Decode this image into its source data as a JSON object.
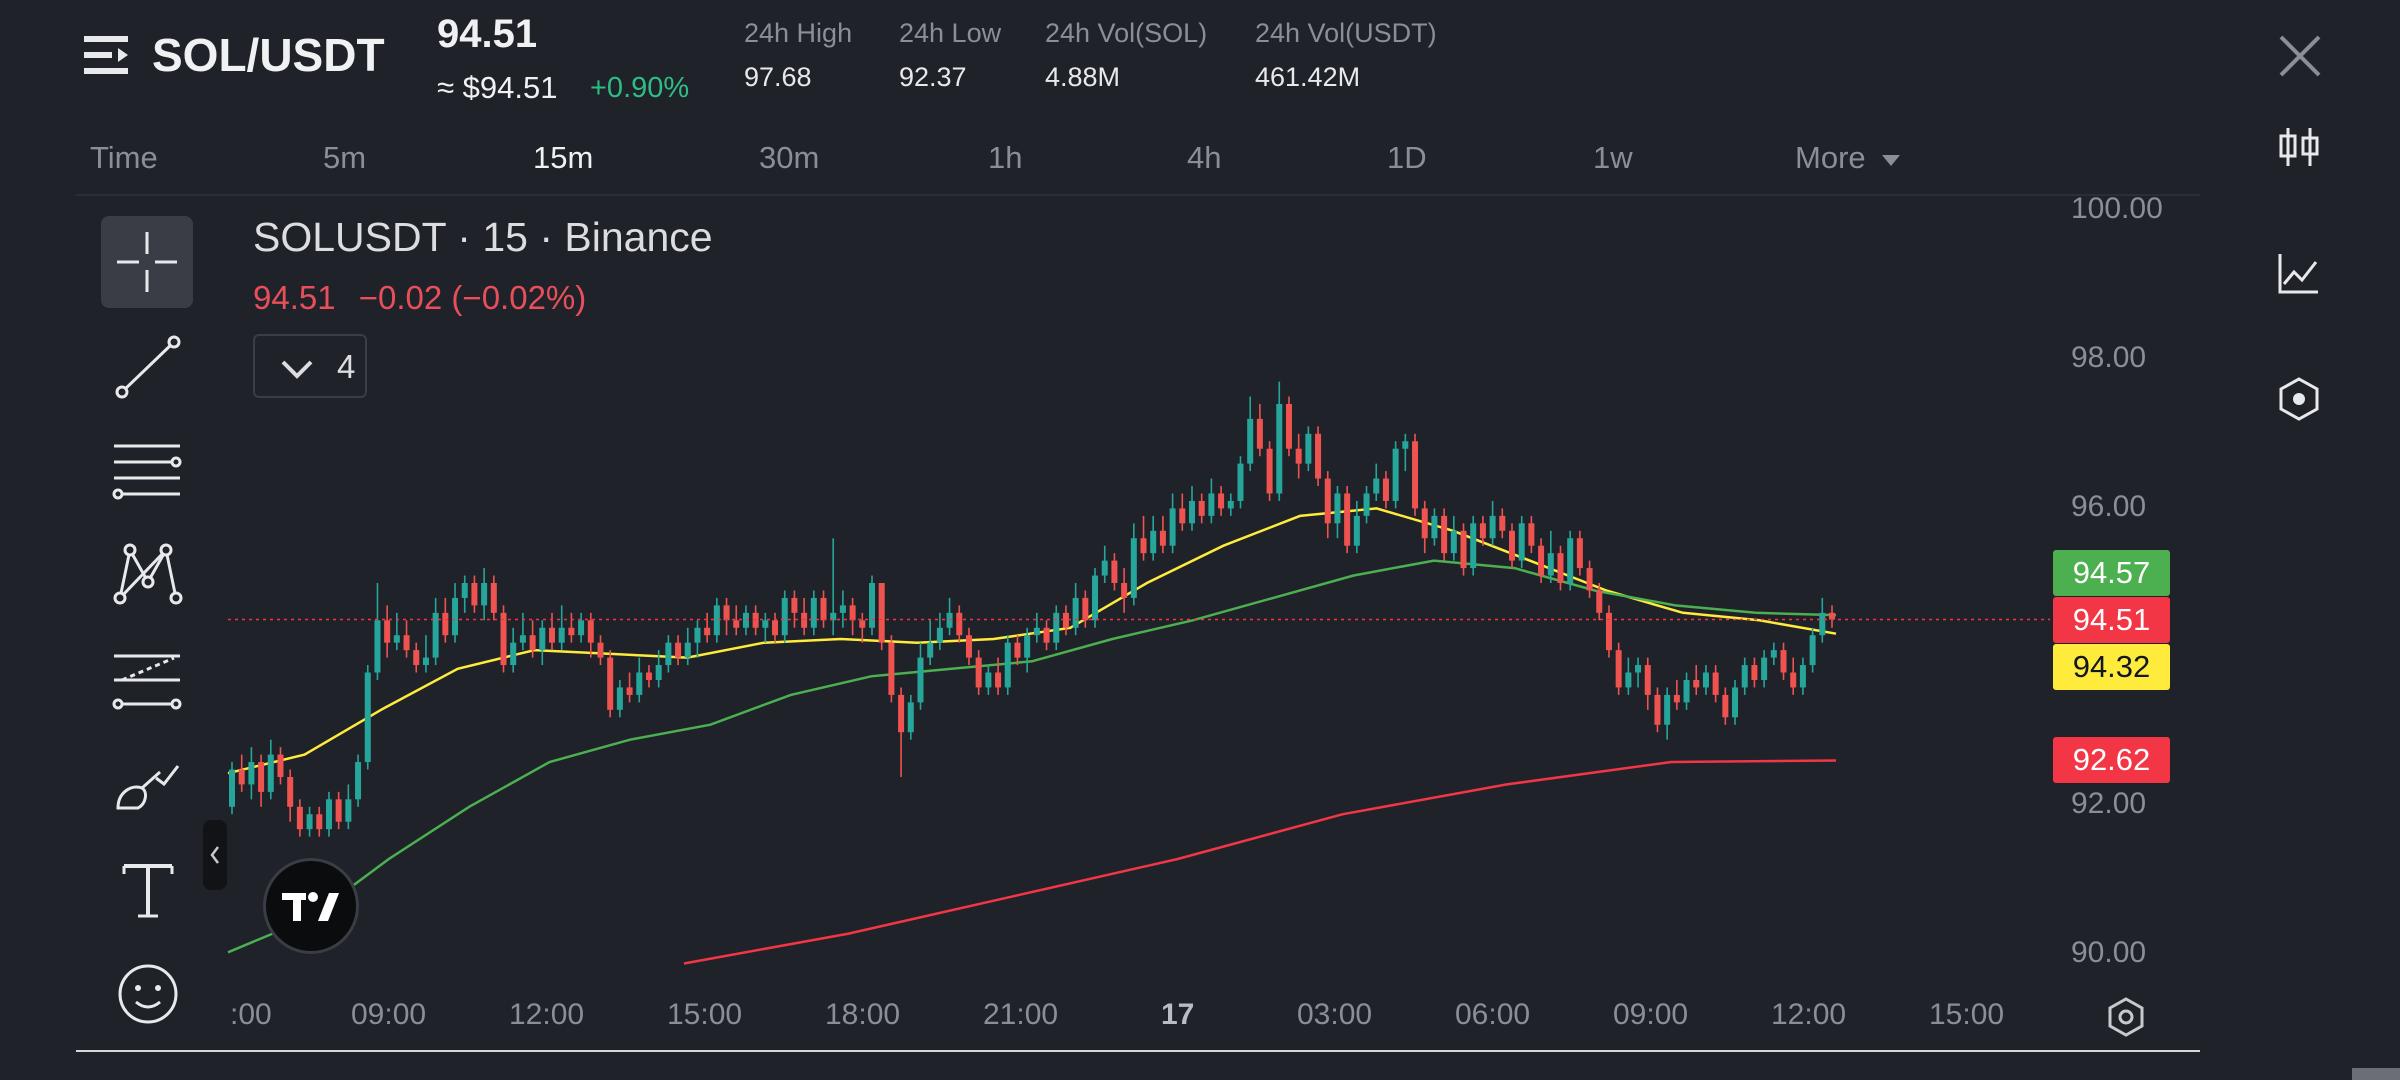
{
  "header": {
    "pair": "SOL/USDT",
    "last_price": "94.51",
    "approx_price": "≈ $94.51",
    "change_pct": "+0.90%",
    "stats": [
      {
        "label": "24h High",
        "value": "97.68"
      },
      {
        "label": "24h Low",
        "value": "92.37"
      },
      {
        "label": "24h Vol(SOL)",
        "value": "4.88M"
      },
      {
        "label": "24h Vol(USDT)",
        "value": "461.42M"
      }
    ]
  },
  "timeframes": [
    "Time",
    "5m",
    "15m",
    "30m",
    "1h",
    "4h",
    "1D",
    "1w",
    "More"
  ],
  "active_timeframe": "15m",
  "legend": {
    "symbol": "SOLUSDT · 15 · Binance",
    "price": "94.51",
    "change": "−0.02 (−0.02%)",
    "indicator_count": "4"
  },
  "tools": [
    "crosshair-icon",
    "trend-line-icon",
    "fib-levels-icon",
    "pattern-icon",
    "forecast-icon",
    "brush-icon",
    "text-icon",
    "emoji-icon"
  ],
  "side_icons": [
    "candlestick-icon",
    "line-chart-icon",
    "indicator-hex-icon"
  ],
  "price_tags": [
    {
      "label": "94.57",
      "bg": "#4caf50",
      "fg": "#ffffff"
    },
    {
      "label": "94.51",
      "bg": "#f23645",
      "fg": "#ffffff"
    },
    {
      "label": "94.32",
      "bg": "#ffeb3b",
      "fg": "#131722"
    },
    {
      "label": "92.62",
      "bg": "#f23645",
      "fg": "#ffffff"
    }
  ],
  "chart_data": {
    "type": "line",
    "y_ticks": [
      "100.00",
      "98.00",
      "96.00",
      "92.00",
      "90.00"
    ],
    "ylim": [
      90,
      100
    ],
    "x_ticks": [
      ":00",
      "09:00",
      "12:00",
      "15:00",
      "18:00",
      "21:00",
      "17",
      "03:00",
      "06:00",
      "09:00",
      "12:00",
      "15:00"
    ],
    "current_price": 94.51,
    "series": [
      {
        "color": "#ffeb3b",
        "values": [
          92.45,
          92.7,
          93.3,
          93.85,
          94.1,
          94.05,
          94.0,
          94.2,
          94.25,
          94.2,
          94.25,
          94.4,
          95.0,
          95.5,
          95.9,
          96.0,
          95.7,
          95.3,
          94.9,
          94.6,
          94.5,
          94.32
        ]
      },
      {
        "color": "#4caf50",
        "values": [
          90.05,
          90.5,
          91.3,
          92.0,
          92.6,
          92.9,
          93.1,
          93.5,
          93.75,
          93.85,
          93.95,
          94.25,
          94.5,
          94.8,
          95.1,
          95.3,
          95.2,
          94.9,
          94.7,
          94.6,
          94.57
        ]
      },
      {
        "color": "#f23645",
        "values": [
          89.9,
          90.3,
          90.8,
          91.3,
          91.9,
          92.3,
          92.6,
          92.62
        ]
      }
    ],
    "candles": [
      [
        92.0,
        92.5,
        92.6,
        91.9
      ],
      [
        92.5,
        92.3,
        92.7,
        92.2
      ],
      [
        92.3,
        92.6,
        92.8,
        92.1
      ],
      [
        92.6,
        92.2,
        92.7,
        92.0
      ],
      [
        92.2,
        92.7,
        92.9,
        92.1
      ],
      [
        92.7,
        92.4,
        92.8,
        92.3
      ],
      [
        92.4,
        92.0,
        92.5,
        91.8
      ],
      [
        92.0,
        91.7,
        92.1,
        91.6
      ],
      [
        91.7,
        91.9,
        92.0,
        91.6
      ],
      [
        91.9,
        91.7,
        92.0,
        91.6
      ],
      [
        91.7,
        92.1,
        92.2,
        91.6
      ],
      [
        92.1,
        91.8,
        92.2,
        91.7
      ],
      [
        91.8,
        92.1,
        92.3,
        91.7
      ],
      [
        92.1,
        92.6,
        92.7,
        92.0
      ],
      [
        92.6,
        93.8,
        93.9,
        92.5
      ],
      [
        93.8,
        94.5,
        95.0,
        93.7
      ],
      [
        94.5,
        94.2,
        94.7,
        94.0
      ],
      [
        94.2,
        94.3,
        94.6,
        94.1
      ],
      [
        94.3,
        94.1,
        94.5,
        94.0
      ],
      [
        94.1,
        93.9,
        94.2,
        93.8
      ],
      [
        93.9,
        94.0,
        94.3,
        93.8
      ],
      [
        94.0,
        94.6,
        94.8,
        93.9
      ],
      [
        94.6,
        94.3,
        94.8,
        94.2
      ],
      [
        94.3,
        94.8,
        95.0,
        94.2
      ],
      [
        94.8,
        95.0,
        95.1,
        94.6
      ],
      [
        95.0,
        94.7,
        95.1,
        94.6
      ],
      [
        94.7,
        95.0,
        95.2,
        94.5
      ],
      [
        95.0,
        94.6,
        95.1,
        94.5
      ],
      [
        94.6,
        93.9,
        94.7,
        93.8
      ],
      [
        93.9,
        94.2,
        94.4,
        93.8
      ],
      [
        94.2,
        94.3,
        94.6,
        94.1
      ],
      [
        94.3,
        94.1,
        94.5,
        94.0
      ],
      [
        94.1,
        94.4,
        94.5,
        93.9
      ],
      [
        94.4,
        94.2,
        94.6,
        94.1
      ],
      [
        94.2,
        94.4,
        94.7,
        94.1
      ],
      [
        94.4,
        94.3,
        94.6,
        94.2
      ],
      [
        94.3,
        94.5,
        94.6,
        94.2
      ],
      [
        94.5,
        94.2,
        94.6,
        94.0
      ],
      [
        94.2,
        94.0,
        94.3,
        93.9
      ],
      [
        94.0,
        93.3,
        94.1,
        93.2
      ],
      [
        93.3,
        93.6,
        93.7,
        93.2
      ],
      [
        93.6,
        93.5,
        93.8,
        93.4
      ],
      [
        93.5,
        93.8,
        94.0,
        93.4
      ],
      [
        93.8,
        93.7,
        93.9,
        93.6
      ],
      [
        93.7,
        93.9,
        94.1,
        93.6
      ],
      [
        93.9,
        94.2,
        94.3,
        93.8
      ],
      [
        94.2,
        94.0,
        94.3,
        93.9
      ],
      [
        94.0,
        94.2,
        94.4,
        93.9
      ],
      [
        94.2,
        94.4,
        94.5,
        94.0
      ],
      [
        94.4,
        94.3,
        94.6,
        94.2
      ],
      [
        94.3,
        94.7,
        94.8,
        94.2
      ],
      [
        94.7,
        94.5,
        94.8,
        94.3
      ],
      [
        94.5,
        94.4,
        94.7,
        94.3
      ],
      [
        94.4,
        94.6,
        94.7,
        94.3
      ],
      [
        94.6,
        94.4,
        94.7,
        94.3
      ],
      [
        94.4,
        94.5,
        94.6,
        94.2
      ],
      [
        94.5,
        94.3,
        94.6,
        94.2
      ],
      [
        94.3,
        94.8,
        94.9,
        94.2
      ],
      [
        94.8,
        94.6,
        94.9,
        94.4
      ],
      [
        94.6,
        94.4,
        94.8,
        94.3
      ],
      [
        94.4,
        94.8,
        94.9,
        94.3
      ],
      [
        94.8,
        94.5,
        94.9,
        94.4
      ],
      [
        94.5,
        94.6,
        95.6,
        94.3
      ],
      [
        94.6,
        94.7,
        94.9,
        94.4
      ],
      [
        94.7,
        94.5,
        94.8,
        94.3
      ],
      [
        94.5,
        94.4,
        94.6,
        94.2
      ],
      [
        94.4,
        95.0,
        95.1,
        94.3
      ],
      [
        95.0,
        94.2,
        95.0,
        94.1
      ],
      [
        94.2,
        93.5,
        94.3,
        93.4
      ],
      [
        93.5,
        93.0,
        93.6,
        92.4
      ],
      [
        93.0,
        93.4,
        93.5,
        92.9
      ],
      [
        93.4,
        94.0,
        94.2,
        93.3
      ],
      [
        94.0,
        94.2,
        94.5,
        93.9
      ],
      [
        94.2,
        94.4,
        94.6,
        94.1
      ],
      [
        94.4,
        94.6,
        94.8,
        94.3
      ],
      [
        94.6,
        94.3,
        94.7,
        94.2
      ],
      [
        94.3,
        94.0,
        94.4,
        93.9
      ],
      [
        94.0,
        93.6,
        94.1,
        93.5
      ],
      [
        93.6,
        93.8,
        93.9,
        93.5
      ],
      [
        93.8,
        93.6,
        94.0,
        93.5
      ],
      [
        93.6,
        94.2,
        94.3,
        93.5
      ],
      [
        94.2,
        94.0,
        94.3,
        93.9
      ],
      [
        94.0,
        94.3,
        94.4,
        93.8
      ],
      [
        94.3,
        94.4,
        94.6,
        94.2
      ],
      [
        94.4,
        94.2,
        94.5,
        94.1
      ],
      [
        94.2,
        94.6,
        94.7,
        94.1
      ],
      [
        94.6,
        94.4,
        94.7,
        94.3
      ],
      [
        94.4,
        94.8,
        95.0,
        94.3
      ],
      [
        94.8,
        94.5,
        94.9,
        94.4
      ],
      [
        94.5,
        95.1,
        95.2,
        94.4
      ],
      [
        95.1,
        95.3,
        95.5,
        95.0
      ],
      [
        95.3,
        95.0,
        95.4,
        94.9
      ],
      [
        95.0,
        94.8,
        95.2,
        94.6
      ],
      [
        94.8,
        95.6,
        95.8,
        94.7
      ],
      [
        95.6,
        95.4,
        95.9,
        95.3
      ],
      [
        95.4,
        95.7,
        95.9,
        95.3
      ],
      [
        95.7,
        95.5,
        95.9,
        95.4
      ],
      [
        95.5,
        96.0,
        96.2,
        95.4
      ],
      [
        96.0,
        95.8,
        96.2,
        95.7
      ],
      [
        95.8,
        96.1,
        96.3,
        95.7
      ],
      [
        96.1,
        95.9,
        96.2,
        95.8
      ],
      [
        95.9,
        96.2,
        96.4,
        95.8
      ],
      [
        96.2,
        96.0,
        96.3,
        95.9
      ],
      [
        96.0,
        96.1,
        96.2,
        95.9
      ],
      [
        96.1,
        96.6,
        96.7,
        96.0
      ],
      [
        96.6,
        97.2,
        97.5,
        96.5
      ],
      [
        97.2,
        96.8,
        97.4,
        96.7
      ],
      [
        96.8,
        96.2,
        96.9,
        96.1
      ],
      [
        96.2,
        97.4,
        97.7,
        96.1
      ],
      [
        97.4,
        96.8,
        97.5,
        96.7
      ],
      [
        96.8,
        96.6,
        97.0,
        96.4
      ],
      [
        96.6,
        97.0,
        97.1,
        96.5
      ],
      [
        97.0,
        96.4,
        97.1,
        96.3
      ],
      [
        96.4,
        95.8,
        96.5,
        95.6
      ],
      [
        95.8,
        96.2,
        96.3,
        95.6
      ],
      [
        96.2,
        95.5,
        96.3,
        95.4
      ],
      [
        95.5,
        95.9,
        96.1,
        95.4
      ],
      [
        95.9,
        96.2,
        96.3,
        95.8
      ],
      [
        96.2,
        96.4,
        96.6,
        96.1
      ],
      [
        96.4,
        96.1,
        96.5,
        96.0
      ],
      [
        96.1,
        96.8,
        96.9,
        96.0
      ],
      [
        96.8,
        96.9,
        97.0,
        96.5
      ],
      [
        96.9,
        96.0,
        97.0,
        95.9
      ],
      [
        96.0,
        95.6,
        96.1,
        95.4
      ],
      [
        95.6,
        95.9,
        96.0,
        95.5
      ],
      [
        95.9,
        95.4,
        96.0,
        95.3
      ],
      [
        95.4,
        95.7,
        95.9,
        95.3
      ],
      [
        95.7,
        95.2,
        95.8,
        95.1
      ],
      [
        95.2,
        95.8,
        95.9,
        95.1
      ],
      [
        95.8,
        95.6,
        95.9,
        95.5
      ],
      [
        95.6,
        95.9,
        96.1,
        95.5
      ],
      [
        95.9,
        95.7,
        96.0,
        95.6
      ],
      [
        95.7,
        95.3,
        95.8,
        95.2
      ],
      [
        95.3,
        95.8,
        95.9,
        95.2
      ],
      [
        95.8,
        95.5,
        95.9,
        95.4
      ],
      [
        95.5,
        95.1,
        95.6,
        95.0
      ],
      [
        95.1,
        95.4,
        95.7,
        95.0
      ],
      [
        95.4,
        95.0,
        95.5,
        94.9
      ],
      [
        95.0,
        95.6,
        95.7,
        94.9
      ],
      [
        95.6,
        95.2,
        95.7,
        95.1
      ],
      [
        95.2,
        94.9,
        95.3,
        94.8
      ],
      [
        94.9,
        94.6,
        95.0,
        94.5
      ],
      [
        94.6,
        94.1,
        94.7,
        94.0
      ],
      [
        94.1,
        93.6,
        94.2,
        93.5
      ],
      [
        93.6,
        93.8,
        94.0,
        93.5
      ],
      [
        93.8,
        93.9,
        94.0,
        93.6
      ],
      [
        93.9,
        93.5,
        94.0,
        93.3
      ],
      [
        93.5,
        93.1,
        93.6,
        93.0
      ],
      [
        93.1,
        93.5,
        93.6,
        92.9
      ],
      [
        93.5,
        93.4,
        93.7,
        93.3
      ],
      [
        93.4,
        93.7,
        93.8,
        93.3
      ],
      [
        93.7,
        93.6,
        93.9,
        93.5
      ],
      [
        93.6,
        93.8,
        93.9,
        93.5
      ],
      [
        93.8,
        93.5,
        93.9,
        93.4
      ],
      [
        93.5,
        93.2,
        93.6,
        93.1
      ],
      [
        93.2,
        93.6,
        93.7,
        93.1
      ],
      [
        93.6,
        93.9,
        94.0,
        93.5
      ],
      [
        93.9,
        93.7,
        94.0,
        93.6
      ],
      [
        93.7,
        94.0,
        94.1,
        93.6
      ],
      [
        94.0,
        94.1,
        94.2,
        93.9
      ],
      [
        94.1,
        93.8,
        94.2,
        93.7
      ],
      [
        93.8,
        93.6,
        94.0,
        93.5
      ],
      [
        93.6,
        93.9,
        94.0,
        93.5
      ],
      [
        93.9,
        94.3,
        94.4,
        93.8
      ],
      [
        94.3,
        94.6,
        94.8,
        94.2
      ],
      [
        94.6,
        94.51,
        94.7,
        94.4
      ]
    ]
  }
}
